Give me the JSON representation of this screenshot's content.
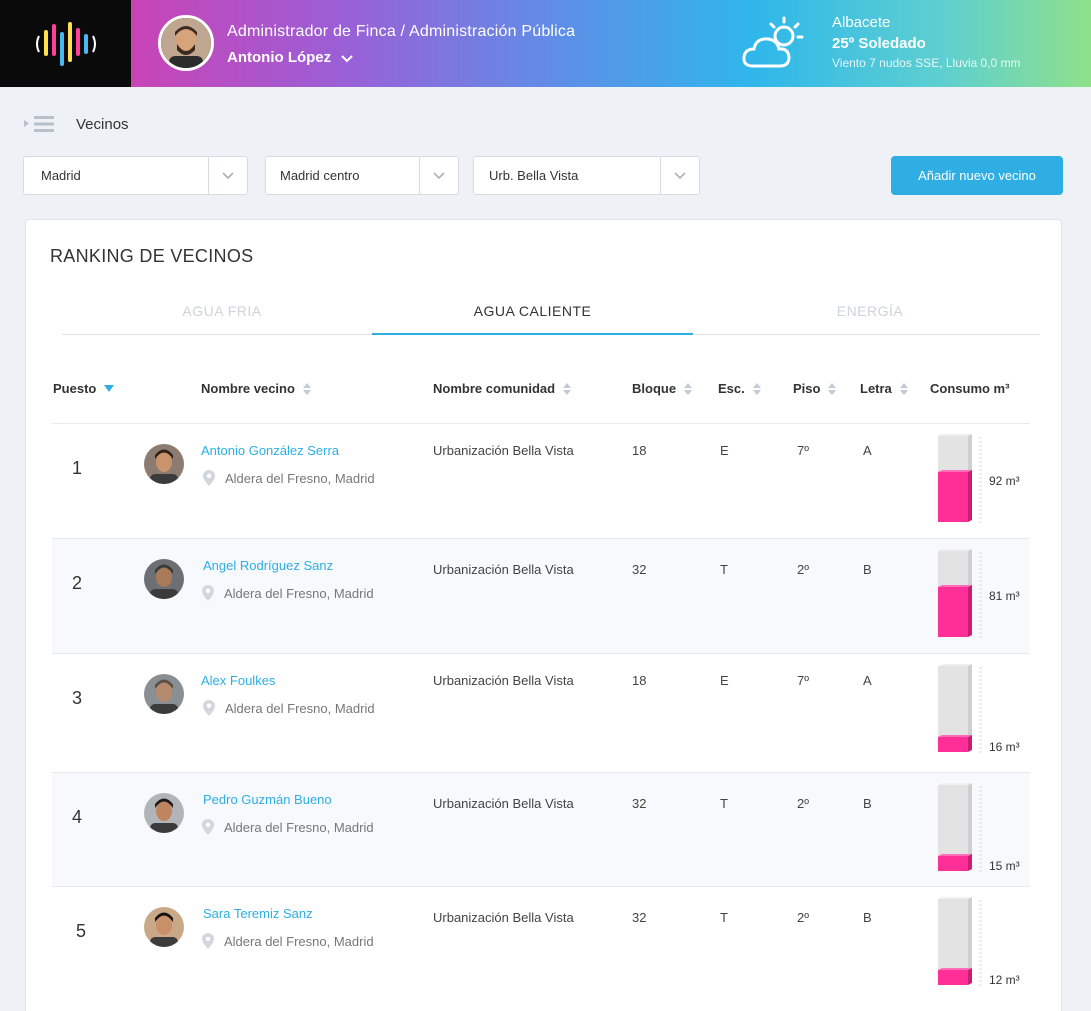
{
  "header": {
    "role": "Administrador de Finca / Administración Pública",
    "user_name": "Antonio López",
    "weather": {
      "city": "Albacete",
      "summary": "25º Soledado",
      "detail": "Viento 7 nudos SSE, Lluvia 0,0 mm"
    }
  },
  "breadcrumb": {
    "label": "Vecinos"
  },
  "filters": {
    "region": "Madrid",
    "zone": "Madrid centro",
    "community": "Urb. Bella Vista",
    "add_button": "Añadir nuevo vecino"
  },
  "ranking": {
    "title": "RANKING DE VECINOS",
    "tabs": [
      "AGUA FRIA",
      "AGUA CALIENTE",
      "ENERGÍA"
    ],
    "active_tab": "AGUA CALIENTE",
    "columns": {
      "rank": "Puesto",
      "name": "Nombre vecino",
      "community": "Nombre comunidad",
      "block": "Bloque",
      "stair": "Esc.",
      "floor": "Piso",
      "letter": "Letra",
      "consumption": "Consumo m³"
    },
    "rows": [
      {
        "rank": "1",
        "name": "Antonio González Serra",
        "location": "Aldera del Fresno, Madrid",
        "community": "Urbanización Bella Vista",
        "block": "18",
        "stair": "E",
        "floor": "7º",
        "letter": "A",
        "consumption": "92 m³",
        "level": 0.58
      },
      {
        "rank": "2",
        "name": "Angel Rodríguez Sanz",
        "location": "Aldera del Fresno, Madrid",
        "community": "Urbanización Bella Vista",
        "block": "32",
        "stair": "T",
        "floor": "2º",
        "letter": "B",
        "consumption": "81 m³",
        "level": 0.58
      },
      {
        "rank": "3",
        "name": "Alex Foulkes",
        "location": "Aldera del Fresno, Madrid",
        "community": "Urbanización Bella Vista",
        "block": "18",
        "stair": "E",
        "floor": "7º",
        "letter": "A",
        "consumption": "16 m³",
        "level": 0.18
      },
      {
        "rank": "4",
        "name": "Pedro Guzmán Bueno",
        "location": "Aldera del Fresno, Madrid",
        "community": "Urbanización Bella Vista",
        "block": "32",
        "stair": "T",
        "floor": "2º",
        "letter": "B",
        "consumption": "15 m³",
        "level": 0.18
      },
      {
        "rank": "5",
        "name": "Sara Teremiz Sanz",
        "location": "Aldera del Fresno, Madrid",
        "community": "Urbanización Bella Vista",
        "block": "32",
        "stair": "T",
        "floor": "2º",
        "letter": "B",
        "consumption": "12 m³",
        "level": 0.18
      }
    ]
  },
  "colors": {
    "accent": "#2eaee3",
    "bar_fill": "#ff2f97",
    "bar_empty": "#e3e3e3"
  }
}
